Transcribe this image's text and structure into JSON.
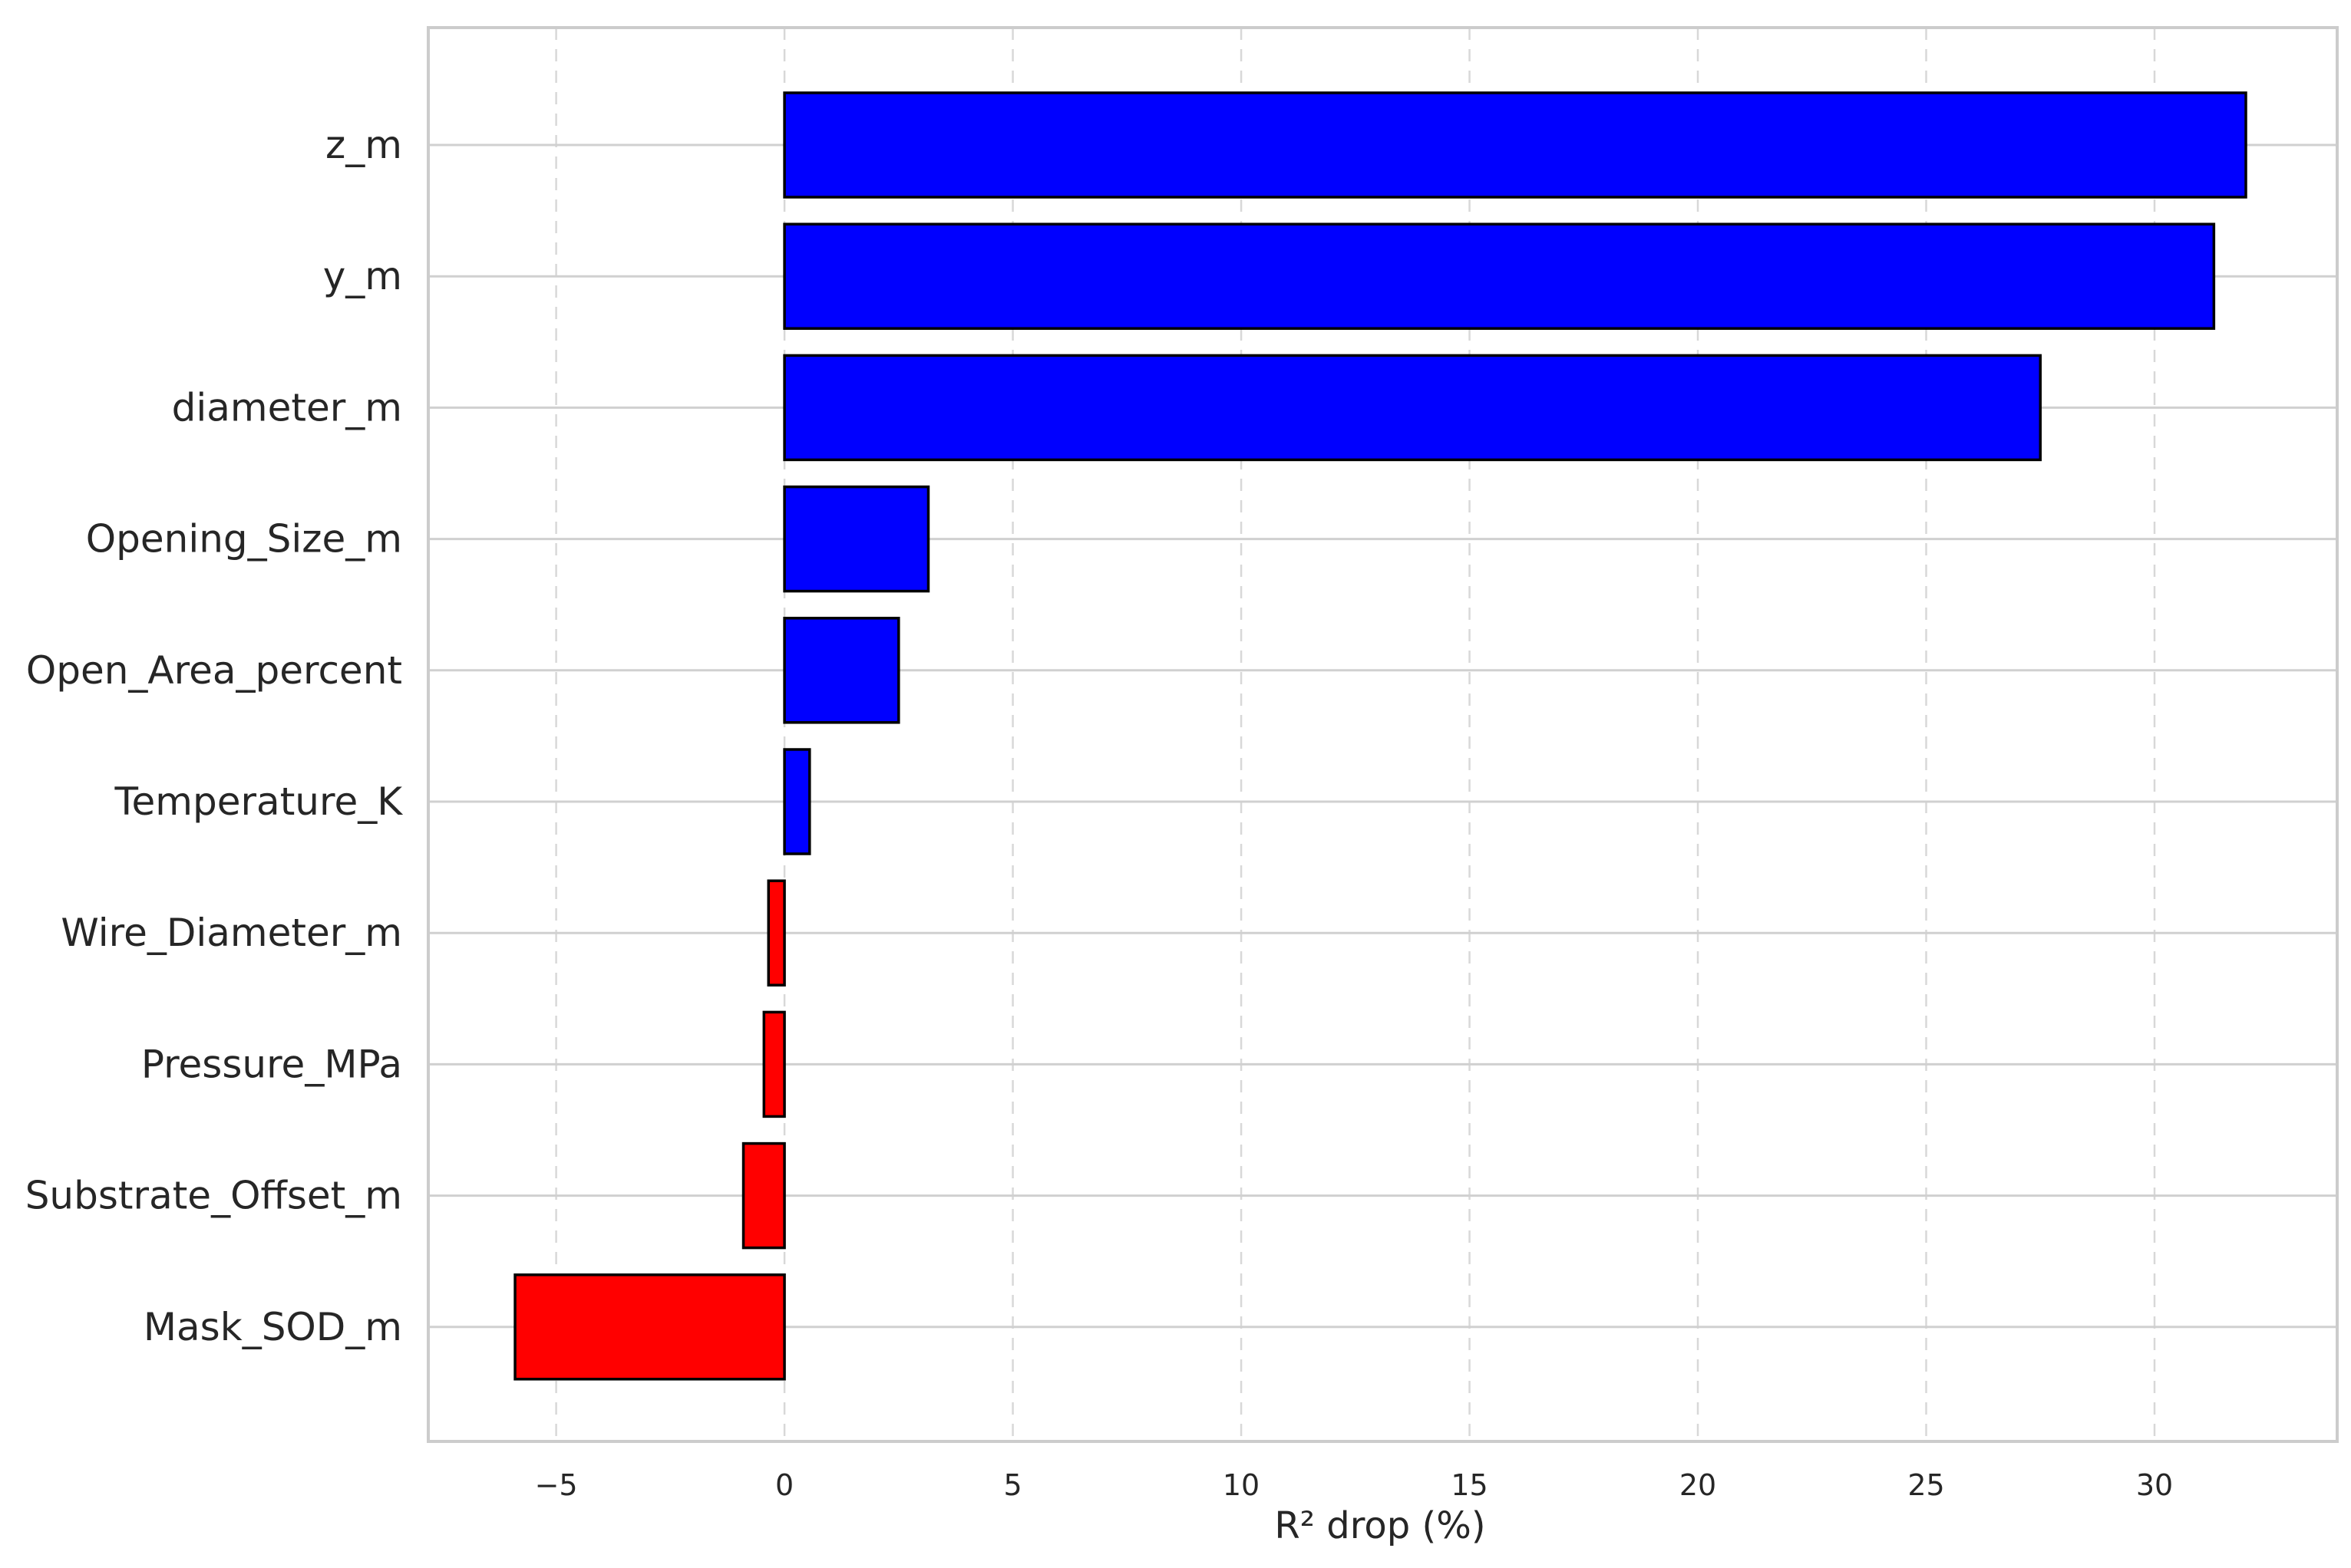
{
  "chart_data": {
    "type": "bar",
    "orientation": "horizontal",
    "categories": [
      "z_m",
      "y_m",
      "diameter_m",
      "Opening_Size_m",
      "Open_Area_percent",
      "Temperature_K",
      "Wire_Diameter_m",
      "Pressure_MPa",
      "Substrate_Offset_m",
      "Mask_SOD_m"
    ],
    "values": [
      32.0,
      31.3,
      27.5,
      3.15,
      2.5,
      0.55,
      -0.35,
      -0.45,
      -0.9,
      -5.9
    ],
    "xlabel": "R² drop (%)",
    "ylabel": "",
    "title": "",
    "xlim": [
      -7.8,
      34.0
    ],
    "xticks": [
      -5,
      0,
      5,
      10,
      15,
      20,
      25,
      30
    ],
    "xtick_labels": [
      "−5",
      "0",
      "5",
      "10",
      "15",
      "20",
      "25",
      "30"
    ],
    "grid": true,
    "colors": {
      "positive": "#0000ff",
      "negative": "#ff0000",
      "edge": "#000000",
      "frame": "#cccccc",
      "grid": "#d0d0d0"
    }
  }
}
